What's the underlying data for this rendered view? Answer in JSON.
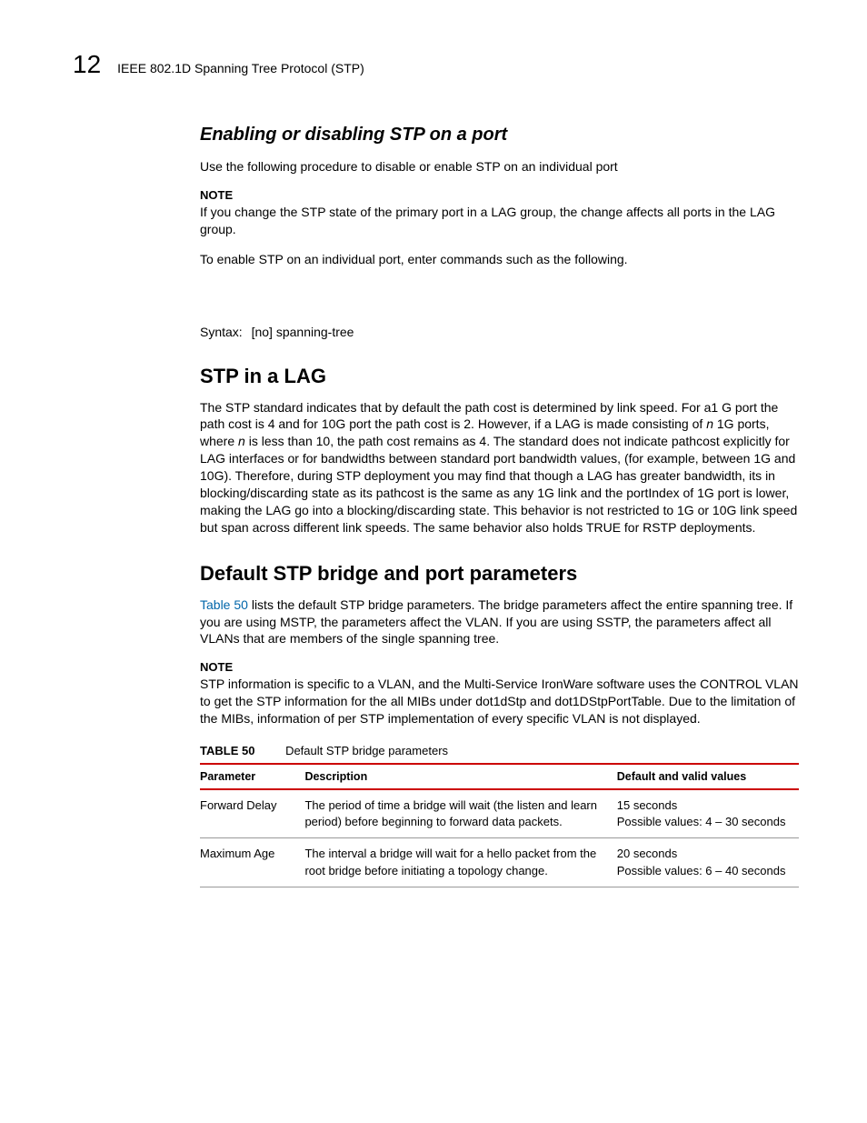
{
  "header": {
    "chapter_number": "12",
    "chapter_title": "IEEE 802.1D Spanning Tree Protocol (STP)"
  },
  "section1": {
    "heading": "Enabling or disabling STP on a port",
    "intro": "Use the following procedure to disable or enable STP on an individual port",
    "note_label": "NOTE",
    "note_text": "If you change the STP state of the primary port in a LAG group, the change affects all ports in the LAG group.",
    "after_note": "To enable STP on an individual port, enter commands such as the following.",
    "syntax_label": "Syntax:",
    "syntax_value": "[no] spanning-tree"
  },
  "section2": {
    "heading": "STP in a LAG",
    "body_pre": "The STP standard indicates that by default the path cost is determined by link speed. For a1 G port the path cost is 4 and for 10G port the path cost is 2. However, if a LAG is made consisting of ",
    "n1": "n",
    "body_mid1": " 1G ports, where ",
    "n2": "n",
    "body_post": " is less than 10, the path cost remains as 4. The standard does not indicate pathcost explicitly for LAG interfaces or for bandwidths between standard port bandwidth values, (for example, between 1G and 10G). Therefore, during STP deployment you may find that though a LAG has greater bandwidth, its in blocking/discarding state as its pathcost is the same as any 1G link and the portIndex of 1G port is lower, making the LAG go into a blocking/discarding state. This behavior is not restricted to 1G or 10G link speed but span across different link speeds. The same behavior also holds TRUE for RSTP deployments."
  },
  "section3": {
    "heading": "Default STP bridge and port parameters",
    "intro_link": "Table 50",
    "intro_rest": " lists the default STP bridge parameters. The bridge parameters affect the entire spanning tree. If you are using MSTP, the parameters affect the VLAN. If you are using SSTP, the parameters affect all VLANs that are members of the single spanning tree.",
    "note_label": "NOTE",
    "note_text": "STP information is specific to a VLAN, and the Multi-Service IronWare software uses the CONTROL VLAN to get the STP information for the all MIBs under dot1dStp and dot1DStpPortTable. Due to the limitation of the MIBs, information of per STP implementation of every specific VLAN is not displayed."
  },
  "table": {
    "caption_label": "TABLE 50",
    "caption_text": "Default STP bridge parameters",
    "columns": [
      "Parameter",
      "Description",
      "Default and valid values"
    ],
    "rows": [
      {
        "param": "Forward Delay",
        "desc": "The period of time a bridge will wait (the listen and learn period) before beginning to forward data packets.",
        "vals_line1": "15 seconds",
        "vals_line2": "Possible values: 4 – 30 seconds"
      },
      {
        "param": "Maximum Age",
        "desc": "The interval a bridge will wait for a hello packet from the root bridge before initiating a topology change.",
        "vals_line1": "20 seconds",
        "vals_line2": "Possible values: 6 – 40 seconds"
      }
    ]
  }
}
